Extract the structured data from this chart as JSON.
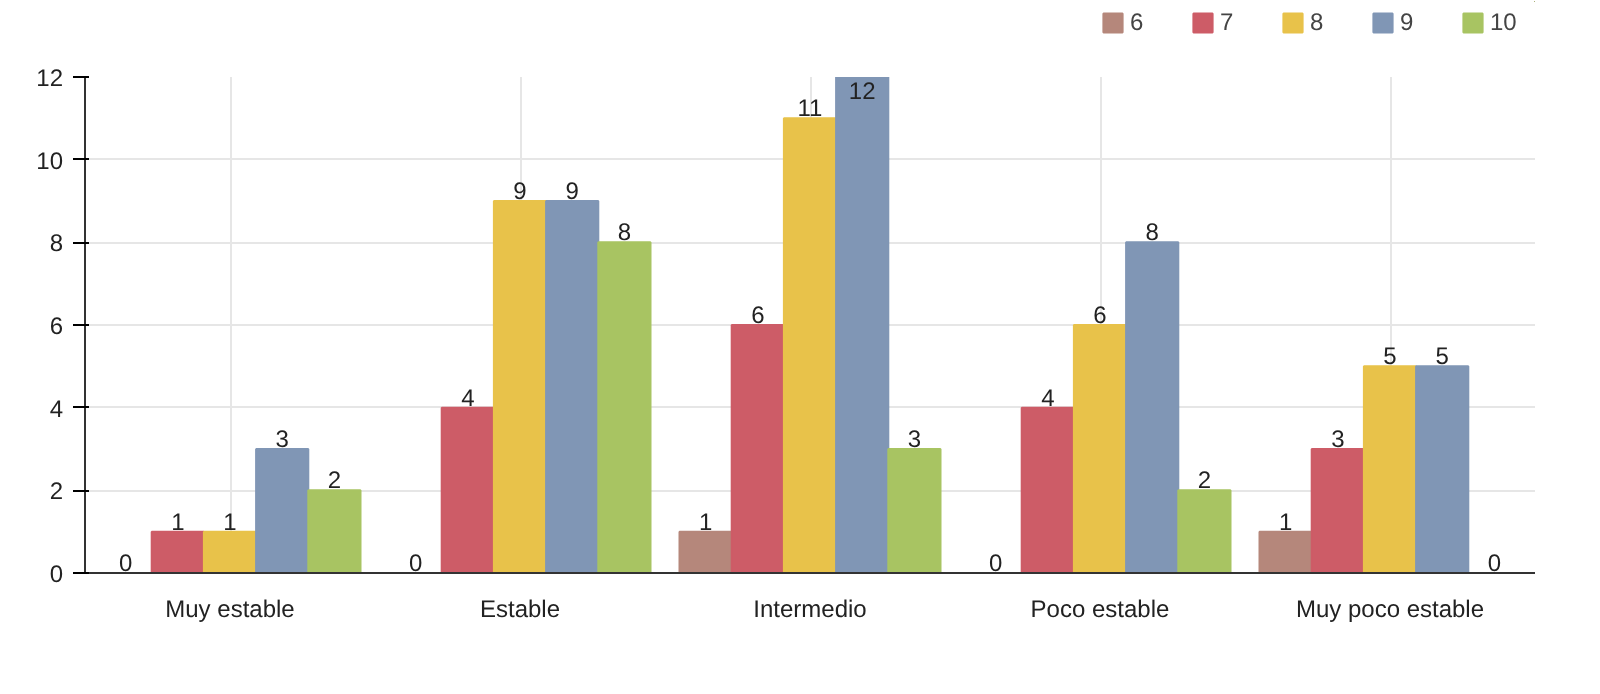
{
  "chart_data": {
    "type": "bar",
    "categories": [
      "Muy estable",
      "Estable",
      "Intermedio",
      "Poco estable",
      "Muy poco estable"
    ],
    "series": [
      {
        "name": "6",
        "color": "#b5877b",
        "values": [
          0,
          0,
          1,
          0,
          1
        ]
      },
      {
        "name": "7",
        "color": "#cd5c67",
        "values": [
          1,
          4,
          6,
          4,
          3
        ]
      },
      {
        "name": "8",
        "color": "#e8c24a",
        "values": [
          1,
          9,
          11,
          6,
          5
        ]
      },
      {
        "name": "9",
        "color": "#8096b5",
        "values": [
          3,
          9,
          12,
          8,
          5
        ]
      },
      {
        "name": "10",
        "color": "#a8c462",
        "values": [
          2,
          8,
          3,
          2,
          0
        ]
      }
    ],
    "ylim": [
      0,
      12
    ],
    "yticks": [
      0,
      2,
      4,
      6,
      8,
      10,
      12
    ],
    "grid": true,
    "legend": "top right",
    "data_labels": true
  }
}
